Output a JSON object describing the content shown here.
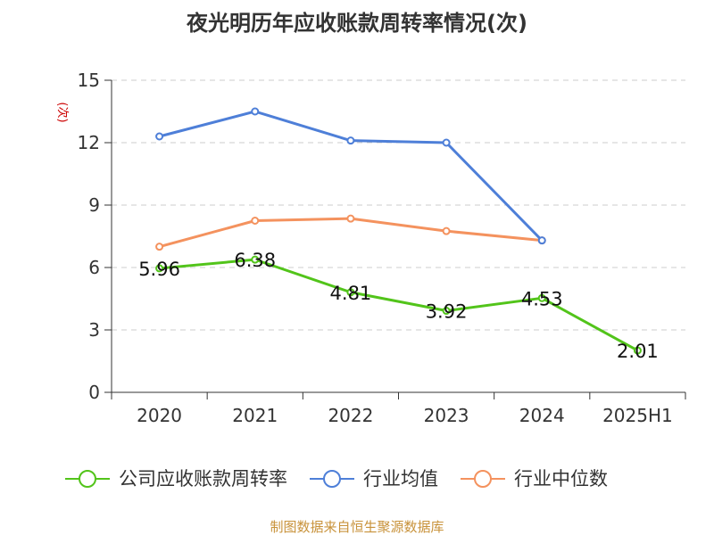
{
  "chart_data": {
    "type": "line",
    "title": "夜光明历年应收账款周转率情况(次)",
    "ylabel": "(次)",
    "ylim": [
      0,
      15
    ],
    "yticks": [
      0,
      3,
      6,
      9,
      12,
      15
    ],
    "grid": true,
    "legend_position": "bottom",
    "categories": [
      "2020",
      "2021",
      "2022",
      "2023",
      "2024",
      "2025H1"
    ],
    "series": [
      {
        "name": "公司应收账款周转率",
        "color": "#52c41a",
        "values": [
          5.96,
          6.38,
          4.81,
          3.92,
          4.53,
          2.01
        ],
        "labels": [
          "5.96",
          "6.38",
          "4.81",
          "3.92",
          "4.53",
          "2.01"
        ]
      },
      {
        "name": "行业均值",
        "color": "#4e7fd8",
        "values": [
          12.3,
          13.5,
          12.1,
          12.0,
          7.3,
          null
        ]
      },
      {
        "name": "行业中位数",
        "color": "#f4925e",
        "values": [
          7.0,
          8.25,
          8.35,
          7.75,
          7.3,
          null
        ]
      }
    ],
    "ylabel_color": "#cc0000"
  },
  "footer": {
    "text": "制图数据来自恒生聚源数据库",
    "color": "#c8923a"
  }
}
